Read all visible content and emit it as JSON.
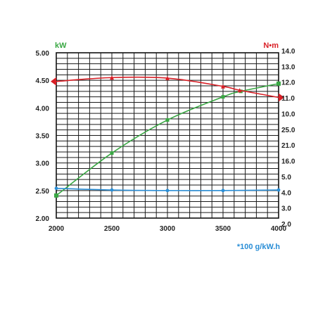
{
  "chart_data": {
    "type": "line",
    "x_ticks": [
      "2000",
      "2500",
      "3000",
      "3500",
      "4000"
    ],
    "xlim": [
      2000,
      4000
    ],
    "left_axis": {
      "unit": "kW",
      "ticks": [
        "2.00",
        "2.50",
        "3.00",
        "3.50",
        "4.00",
        "4.50",
        "5.00"
      ],
      "range": [
        2.0,
        5.0
      ]
    },
    "right_axis_upper": {
      "unit": "N•m",
      "ticks": [
        "14.0",
        "13.0",
        "12.0",
        "11.0",
        "10.0"
      ]
    },
    "right_axis_lower": {
      "ticks": [
        "25.0",
        "21.0",
        "16.0",
        "5.0",
        "4.0",
        "3.0",
        "2.0"
      ]
    },
    "bottom_label": "*100 g/kW.h",
    "grid": true,
    "series": [
      {
        "key": "power",
        "color": "#3aa844",
        "marker": "square",
        "points": [
          [
            2000,
            2.41
          ],
          [
            2500,
            3.18
          ],
          [
            3000,
            3.78
          ],
          [
            3500,
            4.2
          ],
          [
            3660,
            4.3
          ],
          [
            4000,
            4.44
          ]
        ]
      },
      {
        "key": "torque",
        "color": "#d91f26",
        "marker": "triangle",
        "points": [
          [
            2000,
            4.48
          ],
          [
            2500,
            4.55
          ],
          [
            3000,
            4.54
          ],
          [
            3500,
            4.39
          ],
          [
            3650,
            4.32
          ],
          [
            4000,
            4.19
          ]
        ]
      },
      {
        "key": "fuel",
        "color": "#2a8ed6",
        "marker": "circle",
        "points": [
          [
            2000,
            2.54
          ],
          [
            2500,
            2.51
          ],
          [
            3000,
            2.5
          ],
          [
            3500,
            2.5
          ],
          [
            4000,
            2.51
          ]
        ]
      }
    ]
  }
}
